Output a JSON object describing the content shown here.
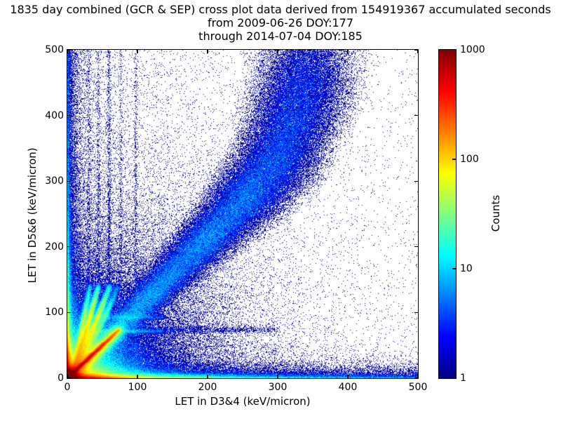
{
  "title": {
    "line1": "1835 day combined (GCR & SEP) cross plot data derived from 154919367 accumulated seconds",
    "line2": "from 2009-06-26 DOY:177",
    "line3": "through 2014-07-04 DOY:185"
  },
  "axes": {
    "xlabel": "LET in D3&4 (keV/micron)",
    "ylabel": "LET in D5&6 (keV/micron)",
    "xticks": [
      0,
      100,
      200,
      300,
      400,
      500
    ],
    "yticks": [
      0,
      100,
      200,
      300,
      400,
      500
    ],
    "xlim": [
      0,
      500
    ],
    "ylim": [
      0,
      500
    ]
  },
  "colorbar": {
    "label": "Counts",
    "ticks": [
      1,
      10,
      100,
      1000
    ],
    "scale": "log",
    "min": 1,
    "max": 1000,
    "min_color": "#000080",
    "max_color": "#800000",
    "colormap": "jet"
  },
  "chart_data": {
    "type": "heatmap",
    "title": "1835 day combined (GCR & SEP) cross plot data, 2009-06-26 DOY:177 through 2014-07-04 DOY:185",
    "days": 1835,
    "accumulated_seconds": 154919367,
    "xlabel": "LET in D3&4 (keV/micron)",
    "ylabel": "LET in D5&6 (keV/micron)",
    "zlabel": "Counts",
    "xlim": [
      0,
      500
    ],
    "ylim": [
      0,
      500
    ],
    "zlim": [
      1,
      1000
    ],
    "zscale": "log",
    "bins": [
      500,
      500
    ],
    "colormap": "jet",
    "background_color": "#ffffff",
    "seed": 177185,
    "fields": [
      {
        "kind": "gauss2d",
        "cx": 0,
        "cy": 0,
        "sigma": 7,
        "amp": 2600
      },
      {
        "kind": "radial_exp",
        "cx": 0,
        "cy": 0,
        "scale": 21,
        "amp": 130
      },
      {
        "kind": "radial_exp",
        "cx": 0,
        "cy": 0,
        "scale": 55,
        "amp": 14
      },
      {
        "kind": "hband",
        "sharp_scale": 2.2,
        "soft_scale": 7,
        "soft_frac": 0.35,
        "xterms": [
          [
            900,
            28
          ],
          [
            90,
            90
          ],
          [
            14,
            260
          ],
          [
            2.5,
            99999
          ]
        ]
      },
      {
        "kind": "vband",
        "sharp_scale": 2.0,
        "soft_scale": 6,
        "soft_frac": 0.3,
        "yterms": [
          [
            700,
            22
          ],
          [
            60,
            80
          ],
          [
            8,
            250
          ],
          [
            1.5,
            99999
          ]
        ]
      },
      {
        "kind": "vstreaks",
        "xs": [
          30,
          44,
          59,
          76,
          97
        ],
        "amps": [
          0.6,
          0.8,
          1.3,
          0.55,
          0.7
        ],
        "sigma": 1.4,
        "decay": 230,
        "base": 0.35
      },
      {
        "kind": "bg",
        "base": 0.012,
        "terms": [
          {
            "t": "radial",
            "scale": 75,
            "amp": 0.5
          },
          {
            "t": "xy",
            "ax": 120,
            "ay": 400,
            "amp": 0.28
          },
          {
            "t": "xy",
            "ax": 300,
            "ay": 15,
            "amp": 1.3
          },
          {
            "t": "xy",
            "ax": 10,
            "ay": 99999,
            "amp": 1.2
          },
          {
            "t": "xy",
            "ax": 99999,
            "ay": 10,
            "amp": 0.5
          }
        ]
      }
    ],
    "curves": [
      {
        "kind": "polyband",
        "pts": [
          [
            0,
            0
          ],
          [
            60,
            62
          ],
          [
            120,
            127
          ],
          [
            200,
            213
          ],
          [
            260,
            280
          ],
          [
            300,
            330
          ],
          [
            322,
            390
          ],
          [
            338,
            450
          ],
          [
            348,
            500
          ]
        ],
        "sigma": [
          6,
          9,
          13,
          18,
          24,
          28,
          31,
          33,
          35
        ],
        "amp": [
          8,
          7,
          6,
          5.5,
          4.5,
          3.5,
          2.8,
          2.4,
          2
        ]
      },
      {
        "kind": "line",
        "p0": [
          2,
          2
        ],
        "p1": [
          74,
          74
        ],
        "sigma": 1.7,
        "amp": [
          650,
          110
        ]
      },
      {
        "kind": "line",
        "p0": [
          3,
          3
        ],
        "p1": [
          74,
          74
        ],
        "sigma": 5.5,
        "amp": [
          130,
          22
        ]
      },
      {
        "kind": "bezier",
        "p0": [
          6,
          6
        ],
        "c": [
          15,
          45
        ],
        "p1": [
          32,
          140
        ],
        "sigma": 2.2,
        "amp": 30
      },
      {
        "kind": "bezier",
        "p0": [
          6,
          6
        ],
        "c": [
          20,
          45
        ],
        "p1": [
          44,
          140
        ],
        "sigma": 2.4,
        "amp": 55
      },
      {
        "kind": "bezier",
        "p0": [
          6,
          6
        ],
        "c": [
          28,
          48
        ],
        "p1": [
          60,
          140
        ],
        "sigma": 2.6,
        "amp": 45
      },
      {
        "kind": "bezier",
        "p0": [
          8,
          8
        ],
        "c": [
          38,
          52
        ],
        "p1": [
          72,
          140
        ],
        "sigma": 2.6,
        "amp": 16
      },
      {
        "kind": "line",
        "p0": [
          22,
          71
        ],
        "p1": [
          135,
          71
        ],
        "sigma": 2.0,
        "amp": [
          11,
          3
        ]
      },
      {
        "kind": "line",
        "p0": [
          22,
          93
        ],
        "p1": [
          140,
          93
        ],
        "sigma": 2.2,
        "amp": [
          6,
          2
        ]
      },
      {
        "kind": "line",
        "p0": [
          100,
          73
        ],
        "p1": [
          300,
          73
        ],
        "sigma": 3.0,
        "amp": [
          1.5,
          0.5
        ]
      }
    ]
  }
}
